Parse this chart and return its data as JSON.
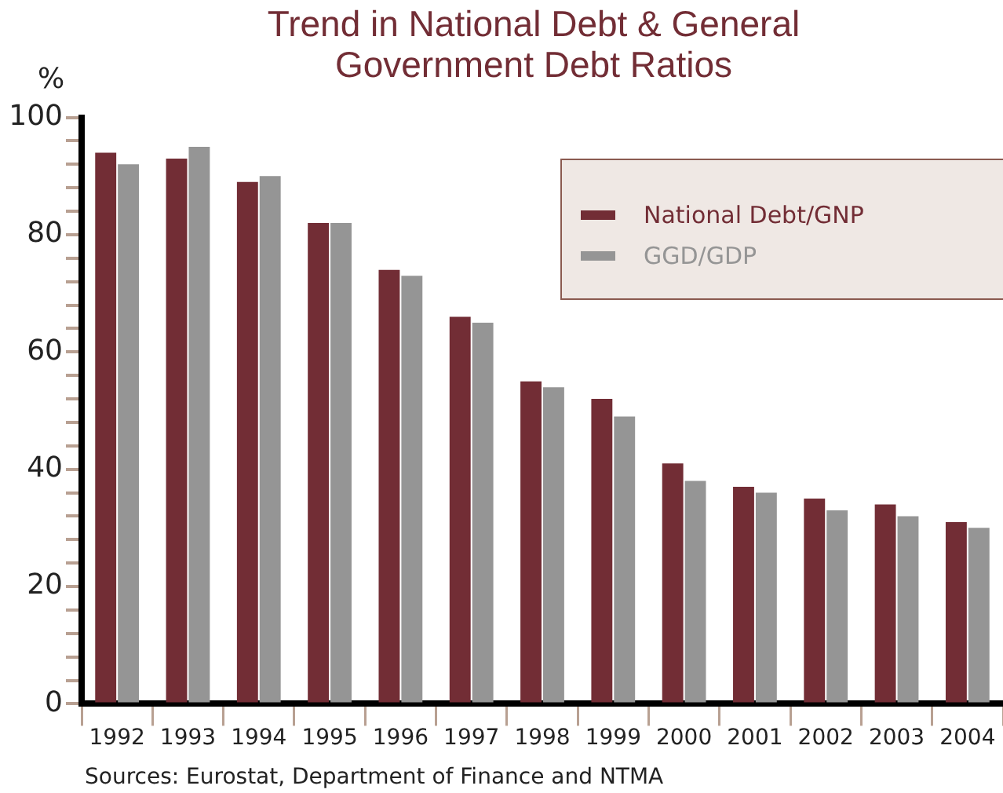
{
  "chart_data": {
    "type": "bar",
    "title": "Trend in National Debt & General Government Debt Ratios",
    "ylabel": "%",
    "categories": [
      "1992",
      "1993",
      "1994",
      "1995",
      "1996",
      "1997",
      "1998",
      "1999",
      "2000",
      "2001",
      "2002",
      "2003",
      "2004"
    ],
    "series": [
      {
        "name": "National Debt/GNP",
        "color": "#722d35",
        "values": [
          94,
          93,
          89,
          82,
          74,
          66,
          55,
          52,
          41,
          37,
          35,
          34,
          31
        ]
      },
      {
        "name": "GGD/GDP",
        "color": "#959595",
        "values": [
          92,
          95,
          90,
          82,
          73,
          65,
          54,
          49,
          38,
          36,
          33,
          32,
          30
        ]
      }
    ],
    "ylim": [
      0,
      100
    ],
    "yticks": [
      0,
      {
        "value": 4,
        "label": null
      },
      {
        "value": 8,
        "label": null
      },
      {
        "value": 12,
        "label": null
      },
      {
        "value": 16,
        "label": null
      },
      20,
      {
        "value": 24,
        "label": null
      },
      {
        "value": 28,
        "label": null
      },
      {
        "value": 32,
        "label": null
      },
      {
        "value": 36,
        "label": null
      },
      40,
      {
        "value": 44,
        "label": null
      },
      {
        "value": 48,
        "label": null
      },
      {
        "value": 52,
        "label": null
      },
      {
        "value": 56,
        "label": null
      },
      60,
      {
        "value": 64,
        "label": null
      },
      {
        "value": 68,
        "label": null
      },
      {
        "value": 72,
        "label": null
      },
      {
        "value": 76,
        "label": null
      },
      80,
      {
        "value": 84,
        "label": null
      },
      {
        "value": 88,
        "label": null
      },
      {
        "value": 92,
        "label": null
      },
      {
        "value": 96,
        "label": null
      },
      100
    ],
    "legend": "top right",
    "annotations": [
      "Sources: Eurostat, Department of Finance and NTMA"
    ]
  }
}
